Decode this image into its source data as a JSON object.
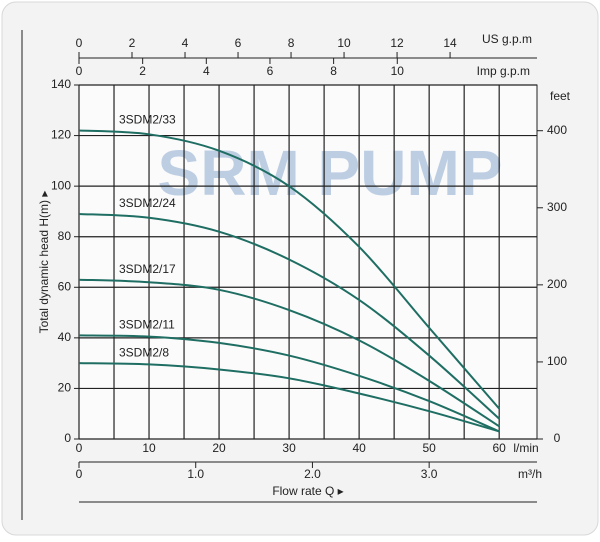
{
  "chart_data": {
    "type": "line",
    "watermark": "SRM PUMP",
    "x_label": "Flow rate Q ▸",
    "x_unit": "l/min",
    "y_label": "Total dynamic head H(m) ▸",
    "y2_label": "feet",
    "x": [
      0,
      10,
      20,
      30,
      40,
      50,
      60
    ],
    "xlim": [
      0,
      65.4
    ],
    "xticks": [
      0,
      10,
      20,
      30,
      40,
      50,
      60
    ],
    "xgrid": [
      0,
      5,
      10,
      15,
      20,
      25,
      30,
      35,
      40,
      45,
      50,
      55,
      60
    ],
    "ylim": [
      0,
      140
    ],
    "yticks": [
      0,
      20,
      40,
      60,
      80,
      100,
      120,
      140
    ],
    "y2lim": [
      0,
      459.3
    ],
    "y2ticks": [
      0,
      100,
      200,
      300,
      400
    ],
    "grid": true,
    "top_axes": [
      {
        "label": "US g.p.m",
        "lim": [
          0,
          17.28
        ],
        "ticks": [
          0,
          2,
          4,
          6,
          8,
          10,
          12,
          14
        ]
      },
      {
        "label": "Imp g.p.m",
        "lim": [
          0,
          14.39
        ],
        "ticks": [
          0,
          2,
          4,
          6,
          8,
          10
        ]
      }
    ],
    "bottom_axis": {
      "label": "m³/h",
      "lim": [
        0,
        3.924
      ],
      "ticks": [
        {
          "value": 0,
          "label": "0"
        },
        {
          "value": 1,
          "label": "1.0"
        },
        {
          "value": 2,
          "label": "2.0"
        },
        {
          "value": 3,
          "label": "3.0"
        }
      ]
    },
    "series": [
      {
        "name": "3SDM2/33",
        "color": "#1f6e63",
        "values": [
          122,
          120.5,
          114,
          100,
          76,
          44,
          12
        ]
      },
      {
        "name": "3SDM2/24",
        "color": "#1f6e63",
        "values": [
          89,
          87.5,
          82,
          71,
          55,
          33,
          8
        ]
      },
      {
        "name": "3SDM2/17",
        "color": "#1f6e63",
        "values": [
          63,
          62,
          59,
          51,
          39,
          23,
          5
        ]
      },
      {
        "name": "3SDM2/11",
        "color": "#1f6e63",
        "values": [
          41,
          40.5,
          38,
          33,
          25,
          15,
          3
        ]
      },
      {
        "name": "3SDM2/8",
        "color": "#1f6e63",
        "values": [
          30,
          29.5,
          27.5,
          24,
          18,
          11,
          3
        ]
      }
    ]
  }
}
